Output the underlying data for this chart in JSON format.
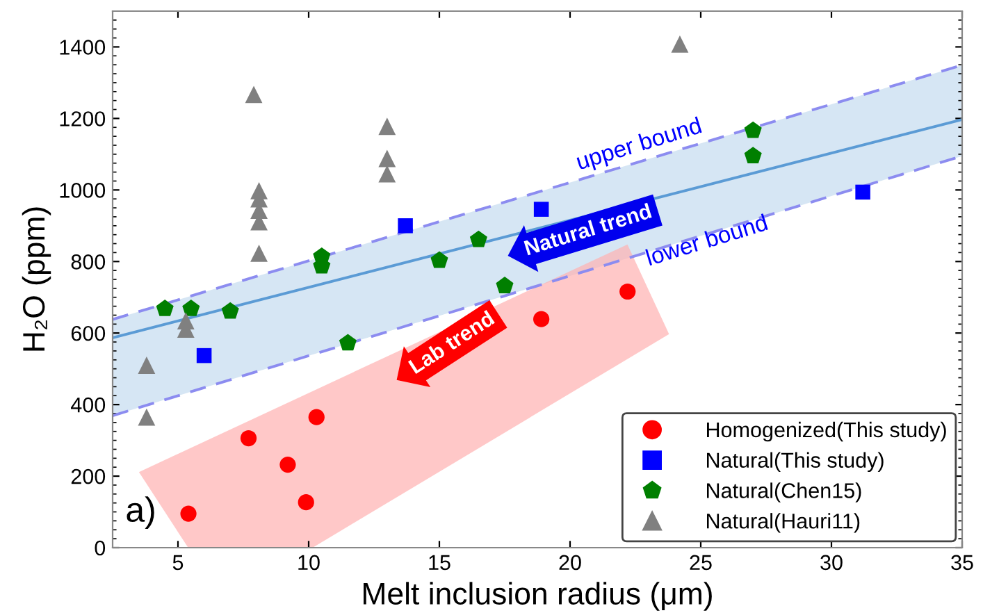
{
  "chart_data": {
    "type": "scatter",
    "xlabel": "Melt inclusion radius (μm)",
    "ylabel": "H₂O (ppm)",
    "xlim": [
      2.5,
      35
    ],
    "ylim": [
      0,
      1500
    ],
    "xticks": [
      5,
      10,
      15,
      20,
      25,
      30,
      35
    ],
    "yticks": [
      0,
      200,
      400,
      600,
      800,
      1000,
      1200,
      1400
    ],
    "grid": false,
    "legend": "bottom right",
    "series": [
      {
        "type": "line",
        "color": "#5b9bd5",
        "line_style": "solid",
        "x": [
          2.5,
          35
        ],
        "values": [
          587,
          1197
        ],
        "lower": [
          369,
          1095
        ],
        "upper": [
          638,
          1349
        ]
      },
      {
        "type": "line",
        "color": "#8c8cf0",
        "line_style": "dashed",
        "x": [
          2.5,
          35
        ],
        "values": [
          638,
          1349
        ]
      },
      {
        "type": "line",
        "color": "#8c8cf0",
        "line_style": "dashed",
        "x": [
          2.5,
          35
        ],
        "values": [
          369,
          1095
        ]
      },
      {
        "name": "Homogenized(This study)",
        "marker": "circle",
        "color": "#ff0000",
        "x": [
          5.4,
          7.7,
          9.2,
          10.3,
          9.9,
          18.9,
          22.2
        ],
        "values": [
          95,
          306,
          232,
          365,
          127,
          639,
          716
        ]
      },
      {
        "name": "Natural(This study)",
        "marker": "square",
        "color": "#0000ff",
        "x": [
          6.0,
          13.7,
          18.9,
          31.2
        ],
        "values": [
          537,
          900,
          946,
          994
        ]
      },
      {
        "name": "Natural(Chen15)",
        "color": "#007f00",
        "x": [
          4.5,
          5.5,
          7.0,
          10.5,
          10.5,
          11.5,
          15.0,
          16.5,
          17.5,
          27.0,
          27.0
        ],
        "values": [
          668,
          668,
          661,
          814,
          787,
          572,
          803,
          861,
          732,
          1166,
          1095
        ]
      },
      {
        "name": "Natural(Hauri11)",
        "marker": "triangle",
        "color": "#808080",
        "x": [
          3.8,
          3.8,
          5.3,
          5.3,
          7.9,
          8.1,
          8.1,
          8.1,
          8.1,
          8.1,
          13.0,
          13.0,
          13.0,
          24.2
        ],
        "values": [
          510,
          365,
          634,
          611,
          1267,
          998,
          975,
          943,
          911,
          823,
          1178,
          1088,
          1045,
          1408
        ]
      }
    ],
    "annotations": [
      "upper bound",
      "lower bound",
      "Natural trend",
      "Lab trend",
      "a)"
    ]
  }
}
